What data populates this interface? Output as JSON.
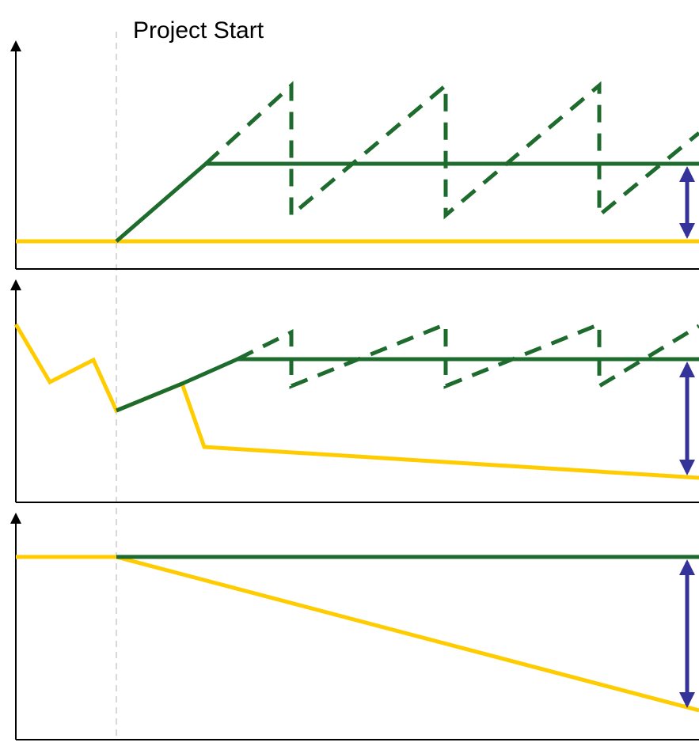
{
  "header": {
    "title": "Project Start"
  }
}
